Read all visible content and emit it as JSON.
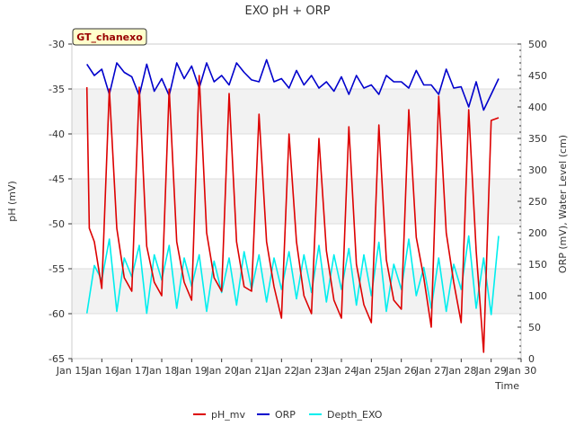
{
  "chart_data": {
    "type": "line",
    "title": "EXO pH + ORP",
    "badge": "GT_chanexo",
    "xlabel": "Time",
    "ylabel_left": "pH (mV)",
    "ylabel_right": "ORP (mV), Water Level (cm)",
    "xlim": [
      "2023-01-15",
      "2023-01-30"
    ],
    "x_ticks": [
      "Jan 15",
      "Jan 16",
      "Jan 17",
      "Jan 18",
      "Jan 19",
      "Jan 20",
      "Jan 21",
      "Jan 22",
      "Jan 23",
      "Jan 24",
      "Jan 25",
      "Jan 26",
      "Jan 27",
      "Jan 28",
      "Jan 29",
      "Jan 30"
    ],
    "ylim_left": [
      -65,
      -30
    ],
    "y_ticks_left": [
      -65,
      -60,
      -55,
      -50,
      -45,
      -40,
      -35,
      -30
    ],
    "ylim_right": [
      0,
      500
    ],
    "y_ticks_right": [
      0,
      50,
      100,
      150,
      200,
      250,
      300,
      350,
      400,
      450,
      500
    ],
    "grid": "horizontal bands",
    "legend_position": "bottom",
    "series": [
      {
        "name": "pH_mv",
        "axis": "left",
        "color": "#dd0000",
        "x": [
          "2023-01-15 12:00",
          "2023-01-15 14:00",
          "2023-01-15 18:00",
          "2023-01-16 00:00",
          "2023-01-16 06:00",
          "2023-01-16 12:00",
          "2023-01-16 18:00",
          "2023-01-17 00:00",
          "2023-01-17 06:00",
          "2023-01-17 12:00",
          "2023-01-17 18:00",
          "2023-01-18 00:00",
          "2023-01-18 06:00",
          "2023-01-18 12:00",
          "2023-01-18 18:00",
          "2023-01-19 00:00",
          "2023-01-19 06:00",
          "2023-01-19 12:00",
          "2023-01-19 18:00",
          "2023-01-20 00:00",
          "2023-01-20 06:00",
          "2023-01-20 12:00",
          "2023-01-20 18:00",
          "2023-01-21 00:00",
          "2023-01-21 06:00",
          "2023-01-21 12:00",
          "2023-01-21 18:00",
          "2023-01-22 00:00",
          "2023-01-22 06:00",
          "2023-01-22 12:00",
          "2023-01-22 18:00",
          "2023-01-23 00:00",
          "2023-01-23 06:00",
          "2023-01-23 12:00",
          "2023-01-23 18:00",
          "2023-01-24 00:00",
          "2023-01-24 06:00",
          "2023-01-24 12:00",
          "2023-01-24 18:00",
          "2023-01-25 00:00",
          "2023-01-25 06:00",
          "2023-01-25 12:00",
          "2023-01-25 18:00",
          "2023-01-26 00:00",
          "2023-01-26 06:00",
          "2023-01-26 12:00",
          "2023-01-26 18:00",
          "2023-01-27 00:00",
          "2023-01-27 06:00",
          "2023-01-27 12:00",
          "2023-01-27 18:00",
          "2023-01-28 00:00",
          "2023-01-28 06:00",
          "2023-01-28 12:00",
          "2023-01-28 18:00",
          "2023-01-29 00:00",
          "2023-01-29 06:00"
        ],
        "values": [
          -34.8,
          -50.5,
          -52.0,
          -57.2,
          -35.0,
          -50.5,
          -56.0,
          -57.5,
          -34.8,
          -52.5,
          -56.5,
          -58.0,
          -35.0,
          -52.0,
          -56.5,
          -58.5,
          -33.5,
          -51.0,
          -56.0,
          -57.5,
          -35.5,
          -52.0,
          -57.0,
          -57.5,
          -37.8,
          -52.0,
          -57.0,
          -60.5,
          -40.0,
          -52.0,
          -58.0,
          -60.0,
          -40.5,
          -53.0,
          -58.5,
          -60.5,
          -39.2,
          -54.5,
          -59.0,
          -61.0,
          -39.0,
          -54.0,
          -58.5,
          -59.5,
          -37.3,
          -51.5,
          -56.0,
          -61.5,
          -35.8,
          -51.0,
          -56.5,
          -61.0,
          -37.3,
          -53.0,
          -64.3,
          -38.5,
          -38.2
        ]
      },
      {
        "name": "ORP",
        "axis": "right",
        "color": "#0000cc",
        "x": [
          "2023-01-15 12:00",
          "2023-01-15 18:00",
          "2023-01-16 00:00",
          "2023-01-16 06:00",
          "2023-01-16 12:00",
          "2023-01-16 18:00",
          "2023-01-17 00:00",
          "2023-01-17 06:00",
          "2023-01-17 12:00",
          "2023-01-17 18:00",
          "2023-01-18 00:00",
          "2023-01-18 06:00",
          "2023-01-18 12:00",
          "2023-01-18 18:00",
          "2023-01-19 00:00",
          "2023-01-19 06:00",
          "2023-01-19 12:00",
          "2023-01-19 18:00",
          "2023-01-20 00:00",
          "2023-01-20 06:00",
          "2023-01-20 12:00",
          "2023-01-20 18:00",
          "2023-01-21 00:00",
          "2023-01-21 06:00",
          "2023-01-21 12:00",
          "2023-01-21 18:00",
          "2023-01-22 00:00",
          "2023-01-22 06:00",
          "2023-01-22 12:00",
          "2023-01-22 18:00",
          "2023-01-23 00:00",
          "2023-01-23 06:00",
          "2023-01-23 12:00",
          "2023-01-23 18:00",
          "2023-01-24 00:00",
          "2023-01-24 06:00",
          "2023-01-24 12:00",
          "2023-01-24 18:00",
          "2023-01-25 00:00",
          "2023-01-25 06:00",
          "2023-01-25 12:00",
          "2023-01-25 18:00",
          "2023-01-26 00:00",
          "2023-01-26 06:00",
          "2023-01-26 12:00",
          "2023-01-26 18:00",
          "2023-01-27 00:00",
          "2023-01-27 06:00",
          "2023-01-27 12:00",
          "2023-01-27 18:00",
          "2023-01-28 00:00",
          "2023-01-28 06:00",
          "2023-01-28 12:00",
          "2023-01-28 18:00",
          "2023-01-29 00:00",
          "2023-01-29 06:00"
        ],
        "values": [
          468,
          450,
          460,
          420,
          470,
          455,
          448,
          418,
          468,
          425,
          445,
          418,
          470,
          445,
          465,
          430,
          470,
          440,
          450,
          435,
          470,
          455,
          443,
          440,
          475,
          440,
          445,
          430,
          458,
          435,
          450,
          430,
          440,
          425,
          448,
          420,
          450,
          430,
          435,
          420,
          450,
          440,
          440,
          430,
          458,
          435,
          435,
          420,
          460,
          430,
          432,
          400,
          440,
          395,
          420,
          445
        ]
      },
      {
        "name": "Depth_EXO",
        "axis": "right",
        "color": "#00eeee",
        "x": [
          "2023-01-15 12:00",
          "2023-01-15 18:00",
          "2023-01-16 00:00",
          "2023-01-16 06:00",
          "2023-01-16 12:00",
          "2023-01-16 18:00",
          "2023-01-17 00:00",
          "2023-01-17 06:00",
          "2023-01-17 12:00",
          "2023-01-17 18:00",
          "2023-01-18 00:00",
          "2023-01-18 06:00",
          "2023-01-18 12:00",
          "2023-01-18 18:00",
          "2023-01-19 00:00",
          "2023-01-19 06:00",
          "2023-01-19 12:00",
          "2023-01-19 18:00",
          "2023-01-20 00:00",
          "2023-01-20 06:00",
          "2023-01-20 12:00",
          "2023-01-20 18:00",
          "2023-01-21 00:00",
          "2023-01-21 06:00",
          "2023-01-21 12:00",
          "2023-01-21 18:00",
          "2023-01-22 00:00",
          "2023-01-22 06:00",
          "2023-01-22 12:00",
          "2023-01-22 18:00",
          "2023-01-23 00:00",
          "2023-01-23 06:00",
          "2023-01-23 12:00",
          "2023-01-23 18:00",
          "2023-01-24 00:00",
          "2023-01-24 06:00",
          "2023-01-24 12:00",
          "2023-01-24 18:00",
          "2023-01-25 00:00",
          "2023-01-25 06:00",
          "2023-01-25 12:00",
          "2023-01-25 18:00",
          "2023-01-26 00:00",
          "2023-01-26 06:00",
          "2023-01-26 12:00",
          "2023-01-26 18:00",
          "2023-01-27 00:00",
          "2023-01-27 06:00",
          "2023-01-27 12:00",
          "2023-01-27 18:00",
          "2023-01-28 00:00",
          "2023-01-28 06:00",
          "2023-01-28 12:00",
          "2023-01-28 18:00",
          "2023-01-29 00:00",
          "2023-01-29 06:00"
        ],
        "values": [
          72,
          148,
          125,
          190,
          75,
          160,
          130,
          180,
          72,
          165,
          125,
          180,
          80,
          160,
          115,
          165,
          75,
          155,
          105,
          160,
          85,
          170,
          110,
          165,
          90,
          160,
          110,
          170,
          95,
          165,
          105,
          180,
          90,
          165,
          110,
          175,
          85,
          165,
          100,
          185,
          75,
          150,
          110,
          190,
          100,
          145,
          80,
          160,
          75,
          150,
          110,
          195,
          80,
          160,
          70,
          195
        ]
      }
    ]
  }
}
